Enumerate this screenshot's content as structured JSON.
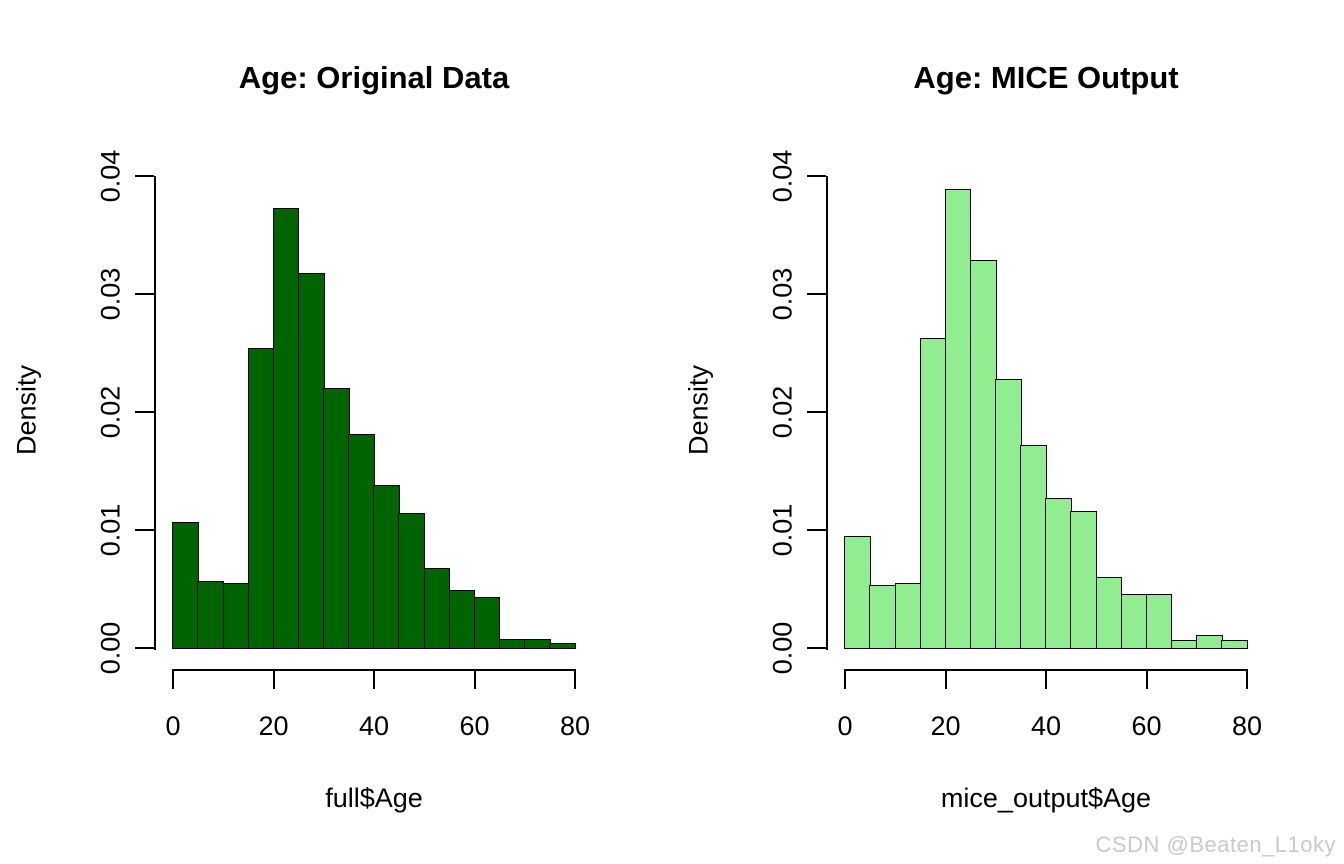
{
  "watermark": {
    "text": "CSDN @Beaten_L1oky",
    "color": "#c9c9c9"
  },
  "chart_data": [
    {
      "type": "bar",
      "title": "Age: Original Data",
      "xlabel": "full$Age",
      "ylabel": "Density",
      "bar_color": "#006400",
      "bar_edge_color": "#000000",
      "xlim": [
        0,
        80
      ],
      "ylim": [
        0,
        0.04
      ],
      "bin_width": 5,
      "x_ticks": [
        0,
        20,
        40,
        60,
        80
      ],
      "y_ticks": [
        "0.00",
        "0.01",
        "0.02",
        "0.03",
        "0.04"
      ],
      "grid": false,
      "legend": null,
      "categories": [
        "0-5",
        "5-10",
        "10-15",
        "15-20",
        "20-25",
        "25-30",
        "30-35",
        "35-40",
        "40-45",
        "45-50",
        "50-55",
        "55-60",
        "60-65",
        "65-70",
        "70-75",
        "75-80"
      ],
      "values": [
        0.0107,
        0.0057,
        0.0055,
        0.0254,
        0.0373,
        0.0318,
        0.022,
        0.0181,
        0.0138,
        0.0114,
        0.0068,
        0.0049,
        0.0043,
        0.0008,
        0.0008,
        0.0004
      ]
    },
    {
      "type": "bar",
      "title": "Age: MICE Output",
      "xlabel": "mice_output$Age",
      "ylabel": "Density",
      "bar_color": "#90ee90",
      "bar_edge_color": "#000000",
      "xlim": [
        0,
        80
      ],
      "ylim": [
        0,
        0.04
      ],
      "bin_width": 5,
      "x_ticks": [
        0,
        20,
        40,
        60,
        80
      ],
      "y_ticks": [
        "0.00",
        "0.01",
        "0.02",
        "0.03",
        "0.04"
      ],
      "grid": false,
      "legend": null,
      "categories": [
        "0-5",
        "5-10",
        "10-15",
        "15-20",
        "20-25",
        "25-30",
        "30-35",
        "35-40",
        "40-45",
        "45-50",
        "50-55",
        "55-60",
        "60-65",
        "65-70",
        "70-75",
        "75-80"
      ],
      "values": [
        0.0095,
        0.0053,
        0.0055,
        0.0263,
        0.0389,
        0.0329,
        0.0228,
        0.0172,
        0.0127,
        0.0116,
        0.006,
        0.0046,
        0.0046,
        0.0007,
        0.0011,
        0.0007
      ]
    }
  ]
}
